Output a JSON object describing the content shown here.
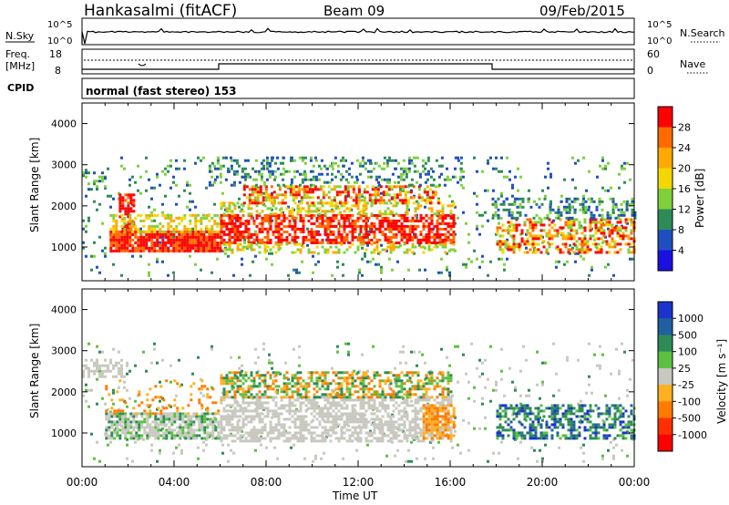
{
  "header": {
    "station": "Hankasalmi (fitACF)",
    "beam": "Beam 09",
    "date": "09/Feb/2015"
  },
  "sky_panel": {
    "left_label": "N.Sky",
    "left_ticks": [
      "10^5",
      "10^0"
    ],
    "right_ticks": [
      "10^5",
      "10^0"
    ],
    "right_label": "N.Search"
  },
  "freq_panel": {
    "left_label_1": "Freq.",
    "left_label_2": "[MHz]",
    "left_ticks": [
      "18",
      "8"
    ],
    "right_ticks": [
      "60",
      "0"
    ],
    "right_label": "Nave",
    "cpid_label": "CPID"
  },
  "mode_text": "normal (fast stereo) 153",
  "chart_data": [
    {
      "type": "heatmap",
      "name": "power",
      "ylabel": "Slant Range [km]",
      "yticks": [
        "4000",
        "3000",
        "2000",
        "1000"
      ],
      "ylim": [
        180,
        4500
      ],
      "colorbar": {
        "label": "Power [dB]",
        "ticks": [
          "28",
          "24",
          "20",
          "16",
          "12",
          "8",
          "4"
        ],
        "colors": [
          "#ff0000",
          "#ff6a00",
          "#ffaa00",
          "#f2d800",
          "#7fd13b",
          "#2e8b57",
          "#1f4fbf",
          "#1a10e0"
        ]
      }
    },
    {
      "type": "heatmap",
      "name": "velocity",
      "ylabel": "Slant Range [km]",
      "yticks": [
        "4000",
        "3000",
        "2000",
        "1000"
      ],
      "ylim": [
        180,
        4500
      ],
      "colorbar": {
        "label": "Velocity [m s⁻¹]",
        "ticks": [
          "1000",
          "500",
          "100",
          "25",
          "-25",
          "-100",
          "-500",
          "-1000"
        ],
        "colors": [
          "#1a33cc",
          "#2060a0",
          "#2e8b57",
          "#5cc040",
          "#c8c8c0",
          "#ffb020",
          "#ff7a00",
          "#ff3000",
          "#ff0000"
        ]
      }
    }
  ],
  "xaxis": {
    "label": "Time UT",
    "ticks": [
      "00:00",
      "04:00",
      "08:00",
      "12:00",
      "16:00",
      "20:00",
      "00:00"
    ]
  }
}
